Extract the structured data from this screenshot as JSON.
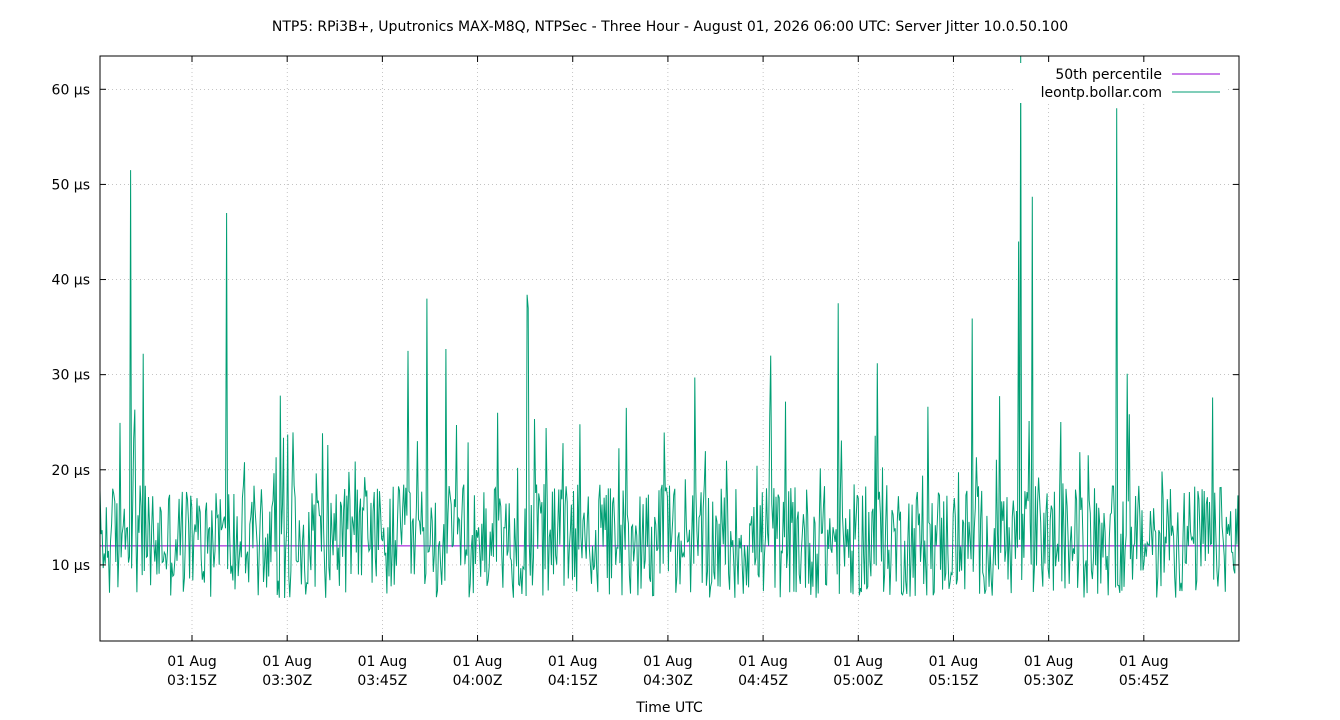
{
  "chart_data": {
    "type": "line",
    "title": "NTP5: RPi3B+, Uputronics MAX-M8Q, NTPSec - Three Hour - August 01, 2026 06:00 UTC: Server Jitter 10.0.50.100",
    "xlabel": "Time UTC",
    "ylabel": "",
    "x_range": [
      "2026-08-01T03:00:30Z",
      "2026-08-01T06:00:00Z"
    ],
    "ylim": [
      2,
      63.5
    ],
    "y_ticks": [
      10,
      20,
      30,
      40,
      50,
      60
    ],
    "y_tick_labels": [
      "10 µs",
      "20 µs",
      "30 µs",
      "40 µs",
      "50 µs",
      "60 µs"
    ],
    "x_ticks": [
      "2026-08-01T03:15:00Z",
      "2026-08-01T03:30:00Z",
      "2026-08-01T03:45:00Z",
      "2026-08-01T04:00:00Z",
      "2026-08-01T04:15:00Z",
      "2026-08-01T04:30:00Z",
      "2026-08-01T04:45:00Z",
      "2026-08-01T05:00:00Z",
      "2026-08-01T05:15:00Z",
      "2026-08-01T05:30:00Z",
      "2026-08-01T05:45:00Z"
    ],
    "x_tick_labels": [
      [
        "01 Aug",
        "03:15Z"
      ],
      [
        "01 Aug",
        "03:30Z"
      ],
      [
        "01 Aug",
        "03:45Z"
      ],
      [
        "01 Aug",
        "04:00Z"
      ],
      [
        "01 Aug",
        "04:15Z"
      ],
      [
        "01 Aug",
        "04:30Z"
      ],
      [
        "01 Aug",
        "04:45Z"
      ],
      [
        "01 Aug",
        "05:00Z"
      ],
      [
        "01 Aug",
        "05:15Z"
      ],
      [
        "01 Aug",
        "05:30Z"
      ],
      [
        "01 Aug",
        "05:45Z"
      ]
    ],
    "grid": true,
    "legend_position": "top-right",
    "series": [
      {
        "name": "50th percentile",
        "color": "#9400d3",
        "kind": "constant",
        "value": 12.0
      },
      {
        "name": "leontp.bollar.com",
        "color": "#009e73",
        "kind": "noisy",
        "baseline": 12.5,
        "min": 2.2,
        "spikes": [
          {
            "time": "2026-08-01T03:05:20Z",
            "value": 51.5
          },
          {
            "time": "2026-08-01T03:07:20Z",
            "value": 32.2
          },
          {
            "time": "2026-08-01T03:20:30Z",
            "value": 47.0
          },
          {
            "time": "2026-08-01T03:29:00Z",
            "value": 27.8
          },
          {
            "time": "2026-08-01T03:49:00Z",
            "value": 32.5
          },
          {
            "time": "2026-08-01T03:52:00Z",
            "value": 38.0
          },
          {
            "time": "2026-08-01T03:55:00Z",
            "value": 32.7
          },
          {
            "time": "2026-08-01T04:07:50Z",
            "value": 38.4
          },
          {
            "time": "2026-08-01T04:08:00Z",
            "value": 37.0
          },
          {
            "time": "2026-08-01T04:34:10Z",
            "value": 29.7
          },
          {
            "time": "2026-08-01T04:46:10Z",
            "value": 32.0
          },
          {
            "time": "2026-08-01T04:56:50Z",
            "value": 37.5
          },
          {
            "time": "2026-08-01T05:03:00Z",
            "value": 31.2
          },
          {
            "time": "2026-08-01T05:18:00Z",
            "value": 35.9
          },
          {
            "time": "2026-08-01T05:25:20Z",
            "value": 44.0
          },
          {
            "time": "2026-08-01T05:25:40Z",
            "value": 63.5
          },
          {
            "time": "2026-08-01T05:27:30Z",
            "value": 48.7
          },
          {
            "time": "2026-08-01T05:40:40Z",
            "value": 58.0
          },
          {
            "time": "2026-08-01T05:42:20Z",
            "value": 30.1
          },
          {
            "time": "2026-08-01T05:55:50Z",
            "value": 27.6
          }
        ]
      }
    ]
  }
}
